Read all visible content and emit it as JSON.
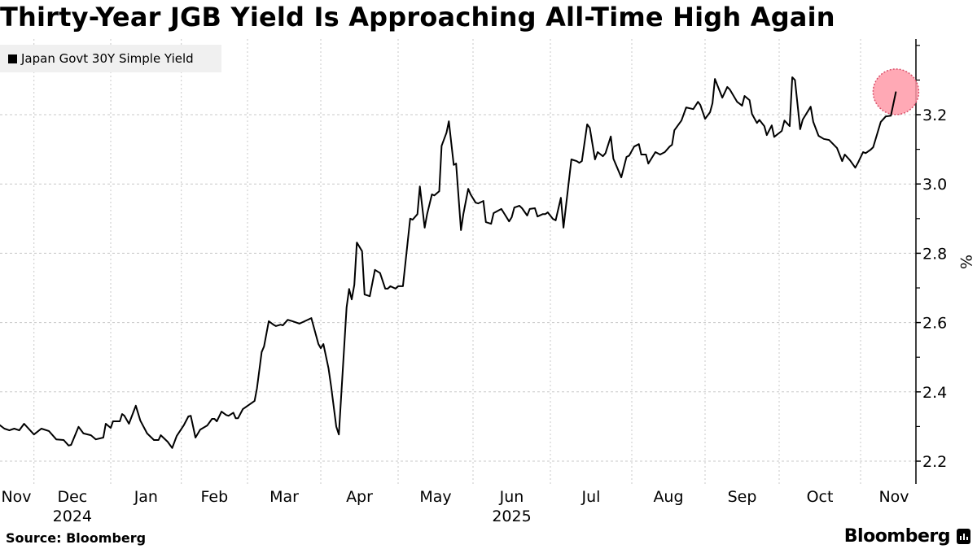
{
  "title": "Thirty-Year JGB Yield Is Approaching All-Time High Again",
  "source": "Source: Bloomberg",
  "logo": "Bloomberg",
  "chart_data": {
    "type": "line",
    "title": "Thirty-Year JGB Yield Is Approaching All-Time High Again",
    "ylabel": "%",
    "xlabel": "",
    "ylim": [
      2.13,
      3.4
    ],
    "yticks": [
      2.2,
      2.4,
      2.6,
      2.8,
      3.0,
      3.2
    ],
    "ytick_labels": [
      "2.2",
      "2.4",
      "2.6",
      "2.8",
      "3.0",
      "3.2"
    ],
    "y_minor_ticks": [
      2.3,
      2.5,
      2.7,
      2.9,
      3.1,
      3.3,
      3.4
    ],
    "x_month_labels": [
      {
        "label": "Nov",
        "month": "2024-11"
      },
      {
        "label": "Dec",
        "month": "2024-12"
      },
      {
        "label": "Jan",
        "month": "2025-01"
      },
      {
        "label": "Feb",
        "month": "2025-02"
      },
      {
        "label": "Mar",
        "month": "2025-03"
      },
      {
        "label": "Apr",
        "month": "2025-04"
      },
      {
        "label": "May",
        "month": "2025-05"
      },
      {
        "label": "Jun",
        "month": "2025-06"
      },
      {
        "label": "Jul",
        "month": "2025-07"
      },
      {
        "label": "Aug",
        "month": "2025-08"
      },
      {
        "label": "Sep",
        "month": "2025-09"
      },
      {
        "label": "Oct",
        "month": "2025-10"
      },
      {
        "label": "Nov",
        "month": "2025-11"
      }
    ],
    "x_year_labels": [
      {
        "label": "2024",
        "under": "Dec"
      },
      {
        "label": "2025",
        "under": "Jun"
      }
    ],
    "grid": {
      "horizontal": true,
      "vertical": true
    },
    "legend": {
      "position": "top-left",
      "entries": [
        "Japan Govt 30Y Simple Yield"
      ]
    },
    "highlight": {
      "date": "2025-11-15",
      "value": 3.266,
      "color": "#ff9aa8"
    },
    "series": [
      {
        "name": "Japan Govt 30Y Simple Yield",
        "color": "#000000",
        "points": [
          [
            "2024-11-16",
            2.31
          ],
          [
            "2024-11-19",
            2.294
          ],
          [
            "2024-11-21",
            2.289
          ],
          [
            "2024-11-23",
            2.294
          ],
          [
            "2024-11-25",
            2.289
          ],
          [
            "2024-11-27",
            2.308
          ],
          [
            "2024-12-01",
            2.277
          ],
          [
            "2024-12-04",
            2.294
          ],
          [
            "2024-12-07",
            2.287
          ],
          [
            "2024-12-10",
            2.263
          ],
          [
            "2024-12-13",
            2.261
          ],
          [
            "2024-12-15",
            2.245
          ],
          [
            "2024-12-16",
            2.247
          ],
          [
            "2024-12-19",
            2.299
          ],
          [
            "2024-12-21",
            2.28
          ],
          [
            "2024-12-24",
            2.275
          ],
          [
            "2024-12-26",
            2.263
          ],
          [
            "2024-12-29",
            2.268
          ],
          [
            "2024-12-30",
            2.308
          ],
          [
            "2025-01-01",
            2.296
          ],
          [
            "2025-01-02",
            2.315
          ],
          [
            "2025-01-05",
            2.315
          ],
          [
            "2025-01-06",
            2.336
          ],
          [
            "2025-01-07",
            2.331
          ],
          [
            "2025-01-09",
            2.308
          ],
          [
            "2025-01-12",
            2.36
          ],
          [
            "2025-01-14",
            2.317
          ],
          [
            "2025-01-17",
            2.28
          ],
          [
            "2025-01-20",
            2.261
          ],
          [
            "2025-01-22",
            2.261
          ],
          [
            "2025-01-23",
            2.275
          ],
          [
            "2025-01-26",
            2.256
          ],
          [
            "2025-01-28",
            2.238
          ],
          [
            "2025-01-30",
            2.273
          ],
          [
            "2025-02-02",
            2.303
          ],
          [
            "2025-02-04",
            2.329
          ],
          [
            "2025-02-05",
            2.331
          ],
          [
            "2025-02-07",
            2.268
          ],
          [
            "2025-02-09",
            2.291
          ],
          [
            "2025-02-12",
            2.303
          ],
          [
            "2025-02-14",
            2.322
          ],
          [
            "2025-02-15",
            2.322
          ],
          [
            "2025-02-16",
            2.315
          ],
          [
            "2025-02-18",
            2.343
          ],
          [
            "2025-02-20",
            2.333
          ],
          [
            "2025-02-21",
            2.331
          ],
          [
            "2025-02-23",
            2.34
          ],
          [
            "2025-02-24",
            2.324
          ],
          [
            "2025-02-25",
            2.324
          ],
          [
            "2025-02-27",
            2.35
          ],
          [
            "2025-03-04",
            2.374
          ],
          [
            "2025-03-05",
            2.41
          ],
          [
            "2025-03-07",
            2.515
          ],
          [
            "2025-03-08",
            2.531
          ],
          [
            "2025-03-10",
            2.604
          ],
          [
            "2025-03-12",
            2.594
          ],
          [
            "2025-03-13",
            2.59
          ],
          [
            "2025-03-15",
            2.594
          ],
          [
            "2025-03-16",
            2.592
          ],
          [
            "2025-03-18",
            2.608
          ],
          [
            "2025-03-20",
            2.604
          ],
          [
            "2025-03-23",
            2.597
          ],
          [
            "2025-03-28",
            2.613
          ],
          [
            "2025-03-31",
            2.538
          ],
          [
            "2025-04-01",
            2.526
          ],
          [
            "2025-04-02",
            2.538
          ],
          [
            "2025-04-04",
            2.468
          ],
          [
            "2025-04-05",
            2.416
          ],
          [
            "2025-04-07",
            2.3
          ],
          [
            "2025-04-08",
            2.277
          ],
          [
            "2025-04-11",
            2.644
          ],
          [
            "2025-04-12",
            2.697
          ],
          [
            "2025-04-13",
            2.667
          ],
          [
            "2025-04-14",
            2.709
          ],
          [
            "2025-04-15",
            2.831
          ],
          [
            "2025-04-17",
            2.806
          ],
          [
            "2025-04-18",
            2.681
          ],
          [
            "2025-04-20",
            2.676
          ],
          [
            "2025-04-22",
            2.752
          ],
          [
            "2025-04-24",
            2.743
          ],
          [
            "2025-04-26",
            2.698
          ],
          [
            "2025-04-27",
            2.698
          ],
          [
            "2025-04-28",
            2.705
          ],
          [
            "2025-04-30",
            2.698
          ],
          [
            "2025-05-01",
            2.705
          ],
          [
            "2025-05-03",
            2.705
          ],
          [
            "2025-05-06",
            2.9
          ],
          [
            "2025-05-07",
            2.897
          ],
          [
            "2025-05-09",
            2.913
          ],
          [
            "2025-05-10",
            2.993
          ],
          [
            "2025-05-12",
            2.874
          ],
          [
            "2025-05-13",
            2.913
          ],
          [
            "2025-05-15",
            2.97
          ],
          [
            "2025-05-16",
            2.967
          ],
          [
            "2025-05-18",
            2.979
          ],
          [
            "2025-05-19",
            3.11
          ],
          [
            "2025-05-21",
            3.148
          ],
          [
            "2025-05-22",
            3.181
          ],
          [
            "2025-05-24",
            3.055
          ],
          [
            "2025-05-25",
            3.059
          ],
          [
            "2025-05-27",
            2.867
          ],
          [
            "2025-05-28",
            2.913
          ],
          [
            "2025-05-30",
            2.986
          ],
          [
            "2025-05-31",
            2.97
          ],
          [
            "2025-06-02",
            2.946
          ],
          [
            "2025-06-03",
            2.944
          ],
          [
            "2025-06-05",
            2.951
          ],
          [
            "2025-06-06",
            2.89
          ],
          [
            "2025-06-08",
            2.885
          ],
          [
            "2025-06-09",
            2.916
          ],
          [
            "2025-06-12",
            2.928
          ],
          [
            "2025-06-13",
            2.916
          ],
          [
            "2025-06-15",
            2.892
          ],
          [
            "2025-06-16",
            2.904
          ],
          [
            "2025-06-17",
            2.932
          ],
          [
            "2025-06-19",
            2.937
          ],
          [
            "2025-06-20",
            2.93
          ],
          [
            "2025-06-22",
            2.909
          ],
          [
            "2025-06-23",
            2.928
          ],
          [
            "2025-06-25",
            2.93
          ],
          [
            "2025-06-26",
            2.906
          ],
          [
            "2025-06-28",
            2.913
          ],
          [
            "2025-06-29",
            2.913
          ],
          [
            "2025-06-30",
            2.918
          ],
          [
            "2025-07-02",
            2.899
          ],
          [
            "2025-07-03",
            2.895
          ],
          [
            "2025-07-05",
            2.96
          ],
          [
            "2025-07-06",
            2.874
          ],
          [
            "2025-07-09",
            3.071
          ],
          [
            "2025-07-11",
            3.066
          ],
          [
            "2025-07-12",
            3.061
          ],
          [
            "2025-07-13",
            3.066
          ],
          [
            "2025-07-15",
            3.172
          ],
          [
            "2025-07-16",
            3.162
          ],
          [
            "2025-07-18",
            3.071
          ],
          [
            "2025-07-19",
            3.092
          ],
          [
            "2025-07-21",
            3.08
          ],
          [
            "2025-07-22",
            3.089
          ],
          [
            "2025-07-24",
            3.137
          ],
          [
            "2025-07-25",
            3.073
          ],
          [
            "2025-07-28",
            3.019
          ],
          [
            "2025-07-30",
            3.078
          ],
          [
            "2025-07-31",
            3.082
          ],
          [
            "2025-08-02",
            3.108
          ],
          [
            "2025-08-04",
            3.115
          ],
          [
            "2025-08-05",
            3.085
          ],
          [
            "2025-08-07",
            3.085
          ],
          [
            "2025-08-08",
            3.059
          ],
          [
            "2025-08-11",
            3.092
          ],
          [
            "2025-08-13",
            3.085
          ],
          [
            "2025-08-15",
            3.092
          ],
          [
            "2025-08-17",
            3.108
          ],
          [
            "2025-08-18",
            3.113
          ],
          [
            "2025-08-19",
            3.155
          ],
          [
            "2025-08-22",
            3.183
          ],
          [
            "2025-08-24",
            3.221
          ],
          [
            "2025-08-27",
            3.216
          ],
          [
            "2025-08-29",
            3.237
          ],
          [
            "2025-08-30",
            3.228
          ],
          [
            "2025-09-01",
            3.188
          ],
          [
            "2025-09-03",
            3.207
          ],
          [
            "2025-09-04",
            3.233
          ],
          [
            "2025-09-05",
            3.303
          ],
          [
            "2025-09-08",
            3.249
          ],
          [
            "2025-09-10",
            3.28
          ],
          [
            "2025-09-11",
            3.273
          ],
          [
            "2025-09-14",
            3.237
          ],
          [
            "2025-09-16",
            3.226
          ],
          [
            "2025-09-17",
            3.254
          ],
          [
            "2025-09-19",
            3.242
          ],
          [
            "2025-09-20",
            3.202
          ],
          [
            "2025-09-22",
            3.176
          ],
          [
            "2025-09-23",
            3.185
          ],
          [
            "2025-09-25",
            3.167
          ],
          [
            "2025-09-26",
            3.141
          ],
          [
            "2025-09-28",
            3.169
          ],
          [
            "2025-09-29",
            3.136
          ],
          [
            "2025-10-02",
            3.153
          ],
          [
            "2025-10-03",
            3.183
          ],
          [
            "2025-10-05",
            3.167
          ],
          [
            "2025-10-06",
            3.308
          ],
          [
            "2025-10-07",
            3.3
          ],
          [
            "2025-10-09",
            3.158
          ],
          [
            "2025-10-10",
            3.186
          ],
          [
            "2025-10-13",
            3.223
          ],
          [
            "2025-10-14",
            3.179
          ],
          [
            "2025-10-16",
            3.139
          ],
          [
            "2025-10-18",
            3.13
          ],
          [
            "2025-10-20",
            3.127
          ],
          [
            "2025-10-23",
            3.104
          ],
          [
            "2025-10-25",
            3.066
          ],
          [
            "2025-10-26",
            3.085
          ],
          [
            "2025-10-28",
            3.068
          ],
          [
            "2025-10-30",
            3.047
          ],
          [
            "2025-10-31",
            3.061
          ],
          [
            "2025-11-02",
            3.092
          ],
          [
            "2025-11-03",
            3.089
          ],
          [
            "2025-11-05",
            3.099
          ],
          [
            "2025-11-06",
            3.106
          ],
          [
            "2025-11-09",
            3.179
          ],
          [
            "2025-11-11",
            3.195
          ],
          [
            "2025-11-13",
            3.197
          ],
          [
            "2025-11-15",
            3.266
          ]
        ]
      }
    ]
  }
}
